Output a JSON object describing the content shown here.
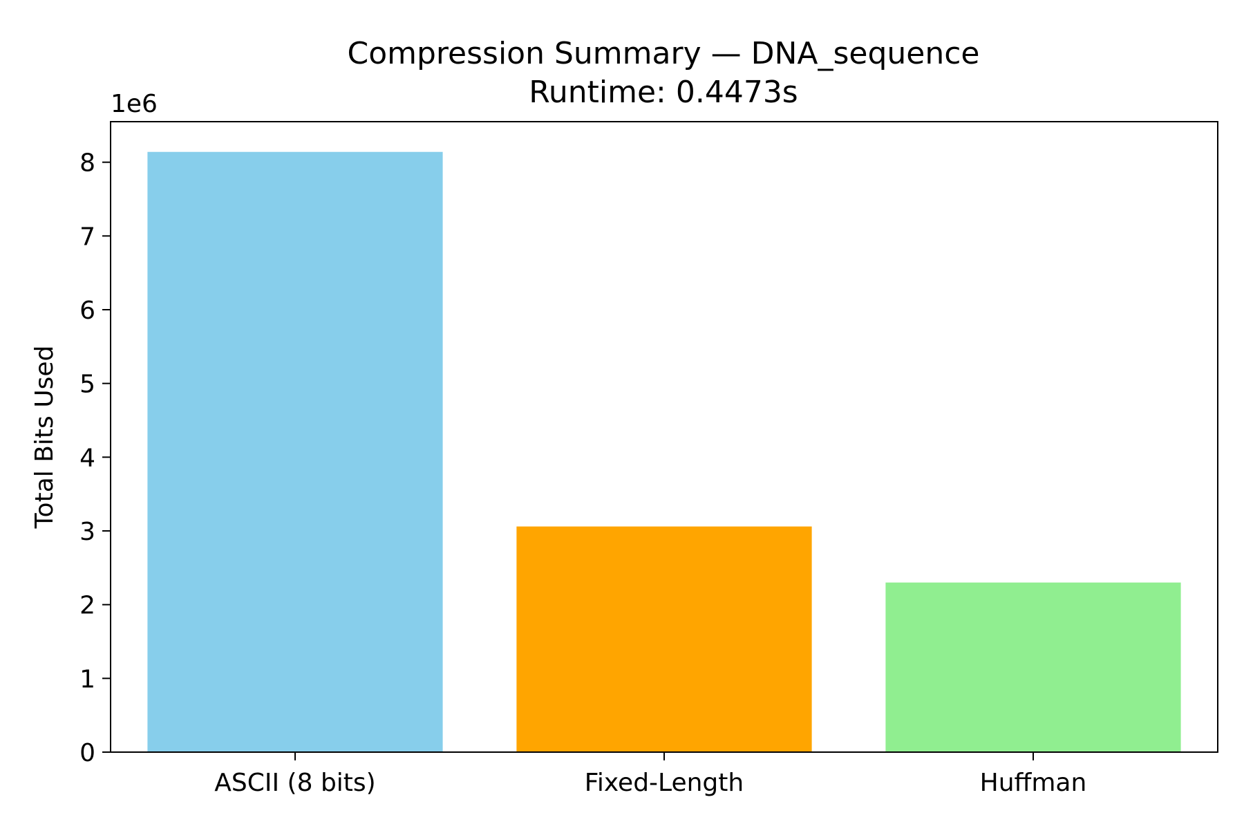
{
  "chart_data": {
    "type": "bar",
    "title": "Compression Summary — DNA_sequence",
    "subtitle": "Runtime: 0.4473s",
    "xlabel": "",
    "ylabel": "Total Bits Used",
    "y_offset_label": "1e6",
    "categories": [
      "ASCII (8 bits)",
      "Fixed-Length",
      "Huffman"
    ],
    "values": [
      8140000,
      3060000,
      2300000
    ],
    "colors": [
      "#87CEEB",
      "#FFA500",
      "#90EE90"
    ],
    "ylim": [
      0,
      8550000
    ],
    "y_ticks": [
      0,
      1000000,
      2000000,
      3000000,
      4000000,
      5000000,
      6000000,
      7000000,
      8000000
    ],
    "y_tick_labels": [
      "0",
      "1",
      "2",
      "3",
      "4",
      "5",
      "6",
      "7",
      "8"
    ],
    "grid": false,
    "legend": false
  }
}
